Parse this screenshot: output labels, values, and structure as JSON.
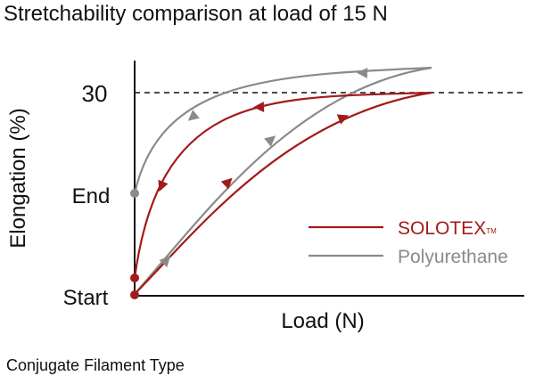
{
  "chart_data": {
    "type": "line",
    "title": "Stretchability comparison at load of 15 N",
    "xlabel": "Load (N)",
    "ylabel": "Elongation (%)",
    "y_tick_labels": [
      "Start",
      "End",
      "30"
    ],
    "reference_line": {
      "y_label": "30",
      "style": "dashed"
    },
    "legend": {
      "placement": "right-center",
      "entries": [
        {
          "label": "SOLOTEX",
          "suffix": "TM",
          "color": "#a31a1a"
        },
        {
          "label": "Polyurethane",
          "suffix": "",
          "color": "#8a8a8a"
        }
      ]
    },
    "series": [
      {
        "name": "SOLOTEX",
        "color": "#a31a1a",
        "loading_curve": {
          "from": "Start",
          "to": "30"
        },
        "unloading_curve": {
          "from": "30",
          "to": "slightly above Start"
        }
      },
      {
        "name": "Polyurethane",
        "color": "#8a8a8a",
        "loading_curve": {
          "from": "Start",
          "to": "above 30"
        },
        "unloading_curve": {
          "from": "above 30",
          "to": "End"
        }
      }
    ],
    "grid": false
  },
  "footer": {
    "note": "Conjugate Filament Type"
  }
}
